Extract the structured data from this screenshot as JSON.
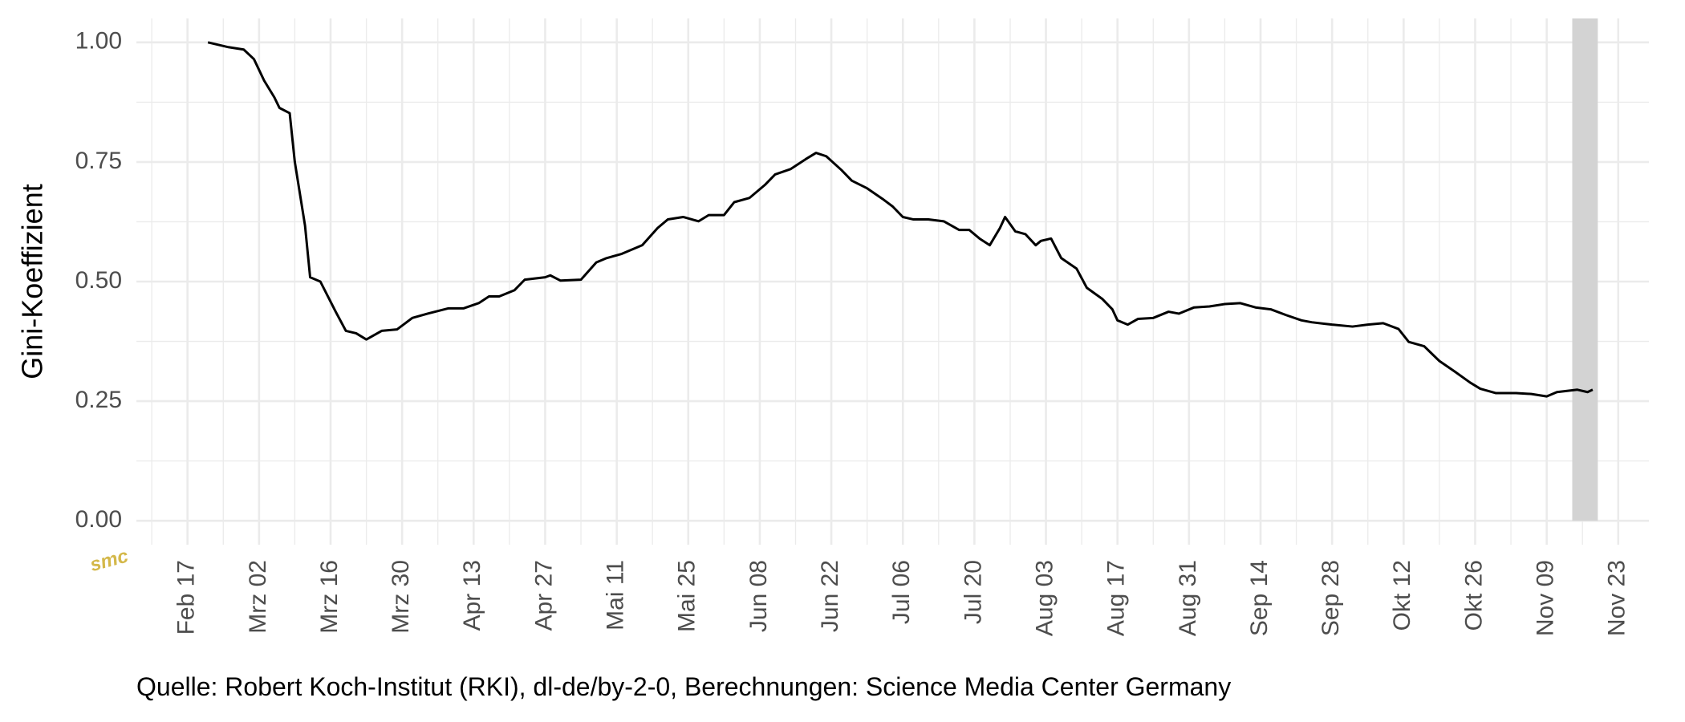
{
  "chart_data": {
    "type": "line",
    "y_label": "Gini-Koeffizient",
    "caption": "Quelle: Robert Koch-Institut (RKI), dl-de/by-2-0, Berechnungen: Science Media Center Germany",
    "logo": "smc",
    "color": "#000000",
    "grid": true,
    "shaded_range": [
      "11-14",
      "11-19"
    ],
    "shaded_color": "#d3d3d3",
    "x": [
      "02-21",
      "02-25",
      "02-28",
      "03-01",
      "03-03",
      "03-05",
      "03-06",
      "03-08",
      "03-09",
      "03-11",
      "03-12",
      "03-14",
      "03-17",
      "03-19",
      "03-21",
      "03-23",
      "03-26",
      "03-29",
      "04-01",
      "04-04",
      "04-08",
      "04-11",
      "04-14",
      "04-16",
      "04-18",
      "04-21",
      "04-23",
      "04-27",
      "04-28",
      "04-30",
      "05-04",
      "05-07",
      "05-09",
      "05-12",
      "05-16",
      "05-19",
      "05-21",
      "05-24",
      "05-27",
      "05-29",
      "06-01",
      "06-03",
      "06-06",
      "06-09",
      "06-11",
      "06-14",
      "06-17",
      "06-19",
      "06-21",
      "06-24",
      "06-26",
      "06-29",
      "07-02",
      "07-04",
      "07-06",
      "07-08",
      "07-11",
      "07-14",
      "07-17",
      "07-19",
      "07-21",
      "07-23",
      "07-25",
      "07-26",
      "07-28",
      "07-30",
      "08-01",
      "08-02",
      "08-04",
      "08-06",
      "08-09",
      "08-11",
      "08-14",
      "08-16",
      "08-17",
      "08-19",
      "08-21",
      "08-24",
      "08-27",
      "08-29",
      "09-01",
      "09-04",
      "09-07",
      "09-10",
      "09-13",
      "09-16",
      "09-19",
      "09-22",
      "09-24",
      "09-28",
      "10-02",
      "10-05",
      "10-08",
      "10-11",
      "10-13",
      "10-16",
      "10-19",
      "10-22",
      "10-25",
      "10-27",
      "10-30",
      "11-03",
      "11-06",
      "11-09",
      "11-11",
      "11-15",
      "11-17",
      "11-18"
    ],
    "values": [
      1.0,
      0.99,
      0.985,
      0.965,
      0.92,
      0.885,
      0.863,
      0.852,
      0.75,
      0.617,
      0.509,
      0.5,
      0.437,
      0.397,
      0.392,
      0.379,
      0.397,
      0.4,
      0.424,
      0.433,
      0.444,
      0.444,
      0.455,
      0.469,
      0.469,
      0.482,
      0.504,
      0.509,
      0.513,
      0.502,
      0.504,
      0.54,
      0.549,
      0.558,
      0.576,
      0.612,
      0.63,
      0.635,
      0.626,
      0.639,
      0.639,
      0.666,
      0.675,
      0.702,
      0.724,
      0.735,
      0.756,
      0.769,
      0.762,
      0.733,
      0.711,
      0.695,
      0.673,
      0.657,
      0.635,
      0.63,
      0.63,
      0.626,
      0.608,
      0.608,
      0.59,
      0.576,
      0.612,
      0.635,
      0.605,
      0.599,
      0.576,
      0.585,
      0.59,
      0.549,
      0.527,
      0.487,
      0.464,
      0.442,
      0.419,
      0.41,
      0.422,
      0.424,
      0.437,
      0.433,
      0.446,
      0.448,
      0.453,
      0.455,
      0.446,
      0.442,
      0.43,
      0.419,
      0.415,
      0.41,
      0.406,
      0.41,
      0.413,
      0.401,
      0.374,
      0.365,
      0.334,
      0.312,
      0.289,
      0.276,
      0.267,
      0.267,
      0.265,
      0.26,
      0.269,
      0.274,
      0.269,
      0.274
    ],
    "xlim": [
      "02-07",
      "11-29"
    ],
    "xticks": [
      {
        "value": "02-17",
        "label": "Feb 17"
      },
      {
        "value": "03-02",
        "label": "Mrz 02"
      },
      {
        "value": "03-16",
        "label": "Mrz 16"
      },
      {
        "value": "03-30",
        "label": "Mrz 30"
      },
      {
        "value": "04-13",
        "label": "Apr 13"
      },
      {
        "value": "04-27",
        "label": "Apr 27"
      },
      {
        "value": "05-11",
        "label": "Mai 11"
      },
      {
        "value": "05-25",
        "label": "Mai 25"
      },
      {
        "value": "06-08",
        "label": "Jun 08"
      },
      {
        "value": "06-22",
        "label": "Jun 22"
      },
      {
        "value": "07-06",
        "label": "Jul 06"
      },
      {
        "value": "07-20",
        "label": "Jul 20"
      },
      {
        "value": "08-03",
        "label": "Aug 03"
      },
      {
        "value": "08-17",
        "label": "Aug 17"
      },
      {
        "value": "08-31",
        "label": "Aug 31"
      },
      {
        "value": "09-14",
        "label": "Sep 14"
      },
      {
        "value": "09-28",
        "label": "Sep 28"
      },
      {
        "value": "10-12",
        "label": "Okt 12"
      },
      {
        "value": "10-26",
        "label": "Okt 26"
      },
      {
        "value": "11-09",
        "label": "Nov 09"
      },
      {
        "value": "11-23",
        "label": "Nov 23"
      }
    ],
    "ylim": [
      -0.05,
      1.05
    ],
    "yticks": [
      {
        "value": 0,
        "label": "0.00"
      },
      {
        "value": 0.25,
        "label": "0.25"
      },
      {
        "value": 0.5,
        "label": "0.50"
      },
      {
        "value": 0.75,
        "label": "0.75"
      },
      {
        "value": 1,
        "label": "1.00"
      }
    ]
  }
}
